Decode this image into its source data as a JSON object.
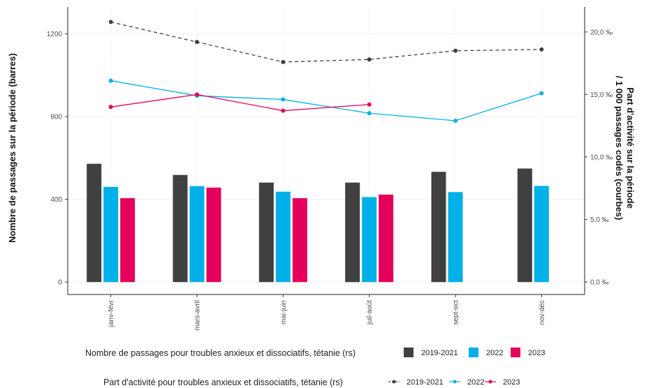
{
  "chart_data": {
    "type": "bar",
    "categories": [
      "janv-févr",
      "mars-avril",
      "mai-juin",
      "juil-août",
      "sept-oct",
      "nov-déc"
    ],
    "bar_series": [
      {
        "name": "2019-2021",
        "color": "#404040",
        "values": [
          572,
          518,
          481,
          481,
          533,
          549
        ]
      },
      {
        "name": "2022",
        "color": "#00b0e8",
        "values": [
          460,
          464,
          437,
          411,
          435,
          465
        ]
      },
      {
        "name": "2023",
        "color": "#e4005c",
        "values": [
          406,
          457,
          406,
          423,
          null,
          null
        ]
      }
    ],
    "line_series": [
      {
        "name": "2019-2021",
        "color": "#404040",
        "dashed": true,
        "values": [
          20.8,
          19.2,
          17.6,
          17.8,
          18.5,
          18.6
        ]
      },
      {
        "name": "2022",
        "color": "#00b0e8",
        "dashed": false,
        "values": [
          16.1,
          14.9,
          14.6,
          13.5,
          12.9,
          15.1
        ]
      },
      {
        "name": "2023",
        "color": "#e4005c",
        "dashed": false,
        "values": [
          14.0,
          15.0,
          13.7,
          14.2,
          null,
          null
        ]
      }
    ],
    "ylabel": "Nombre de passages sur la période (barres)",
    "ylabel_right_line1": "Part d'activité sur la période",
    "ylabel_right_line2": "/ 1 000 passages codés (courbes)",
    "ylim": [
      -60,
      1330
    ],
    "ylim_right": [
      -1.0,
      22.0
    ],
    "yticks_left": [
      "0",
      "400",
      "800",
      "1200"
    ],
    "yticks_right": [
      "0,0 ‰",
      "5,0 ‰",
      "10,0 ‰",
      "15,0 ‰",
      "20,0 ‰"
    ],
    "legend_bars_title": "Nombre de passages pour troubles anxieux et dissociatifs, tétanie (rs)",
    "legend_lines_title": "Part d'activité pour troubles anxieux et dissociatifs, tétanie (rs)",
    "legend_placement": "bottom",
    "grid": true
  }
}
